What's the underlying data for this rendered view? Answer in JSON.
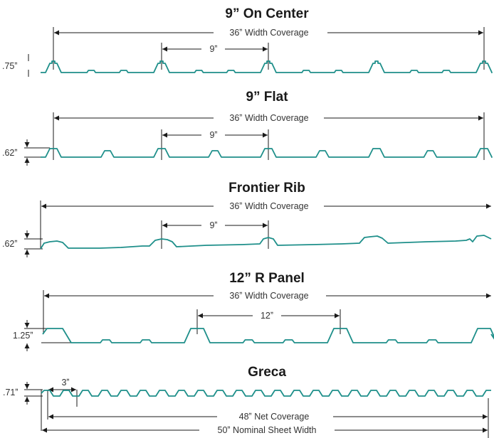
{
  "colors": {
    "profile": "#1e8f8a",
    "lines": "#1a1a1a"
  },
  "panels": [
    {
      "title": "9” On Center",
      "width_label": "36ˮ Width Coverage",
      "spacing_label": "9ˮ",
      "height_label": ".75ˮ"
    },
    {
      "title": "9” Flat",
      "width_label": "36ˮ Width Coverage",
      "spacing_label": "9ˮ",
      "height_label": ".62ˮ"
    },
    {
      "title": "Frontier Rib",
      "width_label": "36ˮ Width Coverage",
      "spacing_label": "9ˮ",
      "height_label": ".62ˮ"
    },
    {
      "title": "12” R Panel",
      "width_label": "36ˮ Width Coverage",
      "spacing_label": "12ˮ",
      "height_label": "1.25ˮ"
    },
    {
      "title": "Greca",
      "width_label": "48ˮ Net Coverage",
      "spacing_label": "3ˮ",
      "height_label": ".71ˮ",
      "sheet_label": "50ˮ Nominal Sheet Width"
    }
  ]
}
